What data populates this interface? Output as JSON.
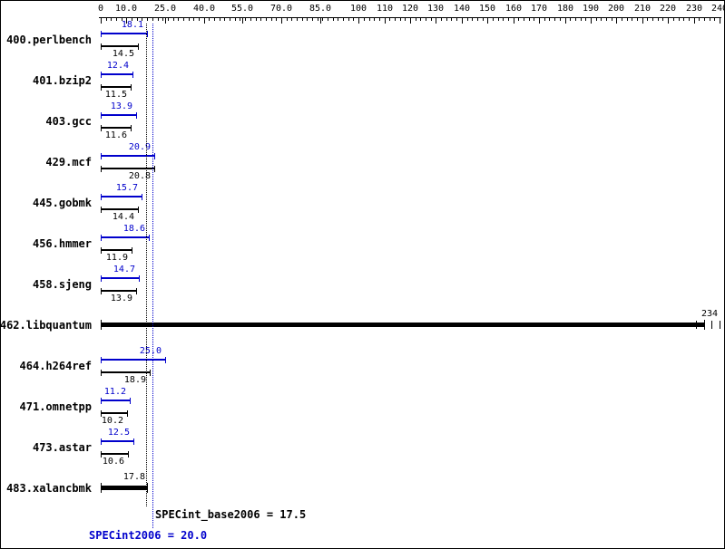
{
  "colors": {
    "peak_blue": "#0000cc",
    "base_black": "#000000",
    "background": "#ffffff"
  },
  "chart_data": {
    "type": "bar",
    "orientation": "horizontal",
    "legend_position": "none",
    "grid": false,
    "axis": {
      "min": 0,
      "max": 240,
      "minor_tick_step": 2,
      "tick_values": [
        0,
        10,
        25,
        40,
        55,
        70,
        85,
        100,
        110,
        120,
        130,
        140,
        150,
        160,
        170,
        180,
        190,
        200,
        210,
        220,
        230,
        240
      ],
      "tick_labels": [
        "0",
        "10.0",
        "25.0",
        "40.0",
        "55.0",
        "70.0",
        "85.0",
        "100",
        "110",
        "120",
        "130",
        "140",
        "150",
        "160",
        "170",
        "180",
        "190",
        "200",
        "210",
        "220",
        "230",
        "240"
      ]
    },
    "series": [
      {
        "name": "SPECint2006 (peak)",
        "color": "#0000cc"
      },
      {
        "name": "SPECint_base2006 (base)",
        "color": "#000000"
      }
    ],
    "benchmarks": [
      {
        "name": "400.perlbench",
        "peak": 18.1,
        "base": 14.5,
        "peak_label": "18.1",
        "base_label": "14.5"
      },
      {
        "name": "401.bzip2",
        "peak": 12.4,
        "base": 11.5,
        "peak_label": "12.4",
        "base_label": "11.5"
      },
      {
        "name": "403.gcc",
        "peak": 13.9,
        "base": 11.6,
        "peak_label": "13.9",
        "base_label": "11.6"
      },
      {
        "name": "429.mcf",
        "peak": 20.9,
        "base": 20.8,
        "peak_label": "20.9",
        "base_label": "20.8"
      },
      {
        "name": "445.gobmk",
        "peak": 15.7,
        "base": 14.4,
        "peak_label": "15.7",
        "base_label": "14.4"
      },
      {
        "name": "456.hmmer",
        "peak": 18.6,
        "base": 11.9,
        "peak_label": "18.6",
        "base_label": "11.9"
      },
      {
        "name": "458.sjeng",
        "peak": 14.7,
        "base": 13.9,
        "peak_label": "14.7",
        "base_label": "13.9"
      },
      {
        "name": "462.libquantum",
        "single": true,
        "value": 234,
        "value_label": "234",
        "run_marks": [
          231,
          237,
          240
        ]
      },
      {
        "name": "464.h264ref",
        "peak": 25.0,
        "base": 18.9,
        "peak_label": "25.0",
        "base_label": "18.9"
      },
      {
        "name": "471.omnetpp",
        "peak": 11.2,
        "base": 10.2,
        "peak_label": "11.2",
        "base_label": "10.2"
      },
      {
        "name": "473.astar",
        "peak": 12.5,
        "base": 10.6,
        "peak_label": "12.5",
        "base_label": "10.6"
      },
      {
        "name": "483.xalancbmk",
        "single": true,
        "value": 17.8,
        "value_label": "17.8"
      }
    ],
    "summary": {
      "base_metric": "SPECint_base2006",
      "base_value": 17.5,
      "base_text": "SPECint_base2006 = 17.5",
      "peak_metric": "SPECint2006",
      "peak_value": 20.0,
      "peak_text": "SPECint2006 = 20.0"
    }
  }
}
